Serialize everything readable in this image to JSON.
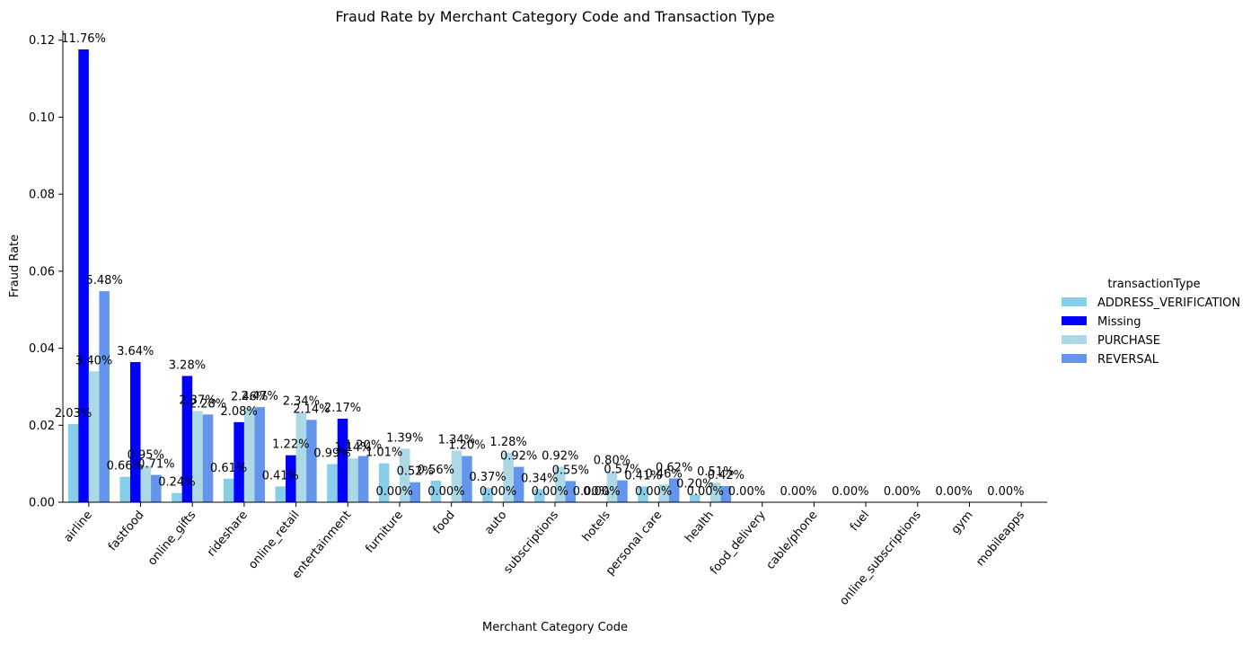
{
  "chart_data": {
    "type": "bar",
    "title": "Fraud Rate by Merchant Category Code and Transaction Type",
    "xlabel": "Merchant Category Code",
    "ylabel": "Fraud Rate",
    "ylim": [
      0,
      0.1225
    ],
    "yticks": [
      0.0,
      0.02,
      0.04,
      0.06,
      0.08,
      0.1,
      0.12
    ],
    "ytick_labels": [
      "0.00",
      "0.02",
      "0.04",
      "0.06",
      "0.08",
      "0.10",
      "0.12"
    ],
    "grid": false,
    "legend_title": "transactionType",
    "legend_position": "right",
    "categories": [
      "airline",
      "fastfood",
      "online_gifts",
      "rideshare",
      "online_retail",
      "entertainment",
      "furniture",
      "food",
      "auto",
      "subscriptions",
      "hotels",
      "personal care",
      "health",
      "food_delivery",
      "cable/phone",
      "fuel",
      "online_subscriptions",
      "gym",
      "mobileapps"
    ],
    "series": [
      {
        "name": "ADDRESS_VERIFICATION",
        "color": "#87CEEB",
        "values": [
          0.0203,
          0.0066,
          0.0024,
          0.0061,
          0.0041,
          0.0099,
          0.0101,
          0.0056,
          0.0037,
          0.0034,
          null,
          0.0041,
          0.002,
          0.0,
          0.0,
          0.0,
          0.0,
          0.0,
          0.0
        ],
        "labels": [
          "2.03%",
          "0.66%",
          "0.24%",
          "0.61%",
          "0.41%",
          "0.99%",
          "1.01%",
          "0.56%",
          "0.37%",
          "0.34%",
          "",
          "0.41%",
          "0.20%",
          "0.00%",
          "0.00%",
          "0.00%",
          "0.00%",
          "0.00%",
          "0.00%"
        ]
      },
      {
        "name": "Missing",
        "color": "#0000FF",
        "values": [
          0.1176,
          0.0364,
          0.0328,
          0.0208,
          0.0122,
          0.0217,
          0.0,
          0.0,
          0.0,
          0.0,
          0.0,
          0.0,
          0.0,
          null,
          null,
          null,
          null,
          null,
          null
        ],
        "labels": [
          "11.76%",
          "3.64%",
          "3.28%",
          "2.08%",
          "1.22%",
          "2.17%",
          "0.00%",
          "0.00%",
          "0.00%",
          "0.00%",
          "0.00%",
          "0.00%",
          "0.00%",
          "",
          "",
          "",
          "",
          "",
          ""
        ]
      },
      {
        "name": "PURCHASE",
        "color": "#ADD8E6",
        "values": [
          0.034,
          0.0095,
          0.0237,
          0.0246,
          0.0234,
          0.0114,
          0.0139,
          0.0134,
          0.0128,
          0.0092,
          0.008,
          0.0046,
          0.0051,
          null,
          null,
          null,
          null,
          null,
          null
        ],
        "labels": [
          "3.40%",
          "0.95%",
          "2.37%",
          "2.46%",
          "2.34%",
          "1.14%",
          "1.39%",
          "1.34%",
          "1.28%",
          "0.92%",
          "0.80%",
          "0.46%",
          "0.51%",
          "",
          "",
          "",
          "",
          "",
          ""
        ]
      },
      {
        "name": "REVERSAL",
        "color": "#6495ED",
        "values": [
          0.0548,
          0.0071,
          0.0228,
          0.0247,
          0.0214,
          0.012,
          0.0052,
          0.012,
          0.0092,
          0.0055,
          0.0057,
          0.0062,
          0.0042,
          null,
          null,
          null,
          null,
          null,
          null
        ],
        "labels": [
          "5.48%",
          "0.71%",
          "2.28%",
          "2.47%",
          "2.14%",
          "1.20%",
          "0.52%",
          "1.20%",
          "0.92%",
          "0.55%",
          "0.57%",
          "0.62%",
          "0.42%",
          "",
          "",
          "",
          "",
          "",
          ""
        ]
      }
    ],
    "annotations": [
      {
        "category": "hotels",
        "text": "0.00%"
      }
    ]
  }
}
